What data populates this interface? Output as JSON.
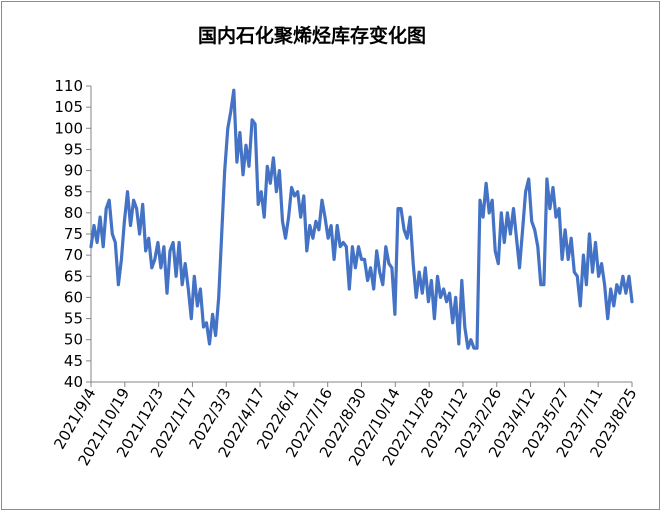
{
  "chart_data": {
    "type": "line",
    "title": "国内石化聚烯烃库存变化图",
    "xlabel": "",
    "ylabel": "",
    "ylim": [
      40,
      110
    ],
    "yticks": [
      40,
      45,
      50,
      55,
      60,
      65,
      70,
      75,
      80,
      85,
      90,
      95,
      100,
      105,
      110
    ],
    "xticks": [
      "2021/9/4",
      "2021/10/19",
      "2021/12/3",
      "2022/1/17",
      "2022/3/3",
      "2022/4/17",
      "2022/6/1",
      "2022/7/16",
      "2022/8/30",
      "2022/10/14",
      "2022/11/28",
      "2023/1/12",
      "2023/2/26",
      "2023/4/12",
      "2023/5/27",
      "2023/7/11",
      "2023/8/25"
    ],
    "grid": false,
    "legend": "none",
    "line_color": "#4472c4",
    "series": [
      {
        "values": [
          [
            0,
            72
          ],
          [
            1,
            77
          ],
          [
            2,
            73
          ],
          [
            3,
            79
          ],
          [
            4,
            72
          ],
          [
            5,
            81
          ],
          [
            6,
            83
          ],
          [
            7,
            75
          ],
          [
            8,
            73
          ],
          [
            9,
            63
          ],
          [
            10,
            69
          ],
          [
            11,
            78
          ],
          [
            12,
            85
          ],
          [
            13,
            77
          ],
          [
            14,
            83
          ],
          [
            15,
            81
          ],
          [
            16,
            75
          ],
          [
            17,
            82
          ],
          [
            18,
            71
          ],
          [
            19,
            74
          ],
          [
            20,
            67
          ],
          [
            21,
            69
          ],
          [
            22,
            73
          ],
          [
            23,
            67
          ],
          [
            24,
            72
          ],
          [
            25,
            61
          ],
          [
            26,
            71
          ],
          [
            27,
            73
          ],
          [
            28,
            65
          ],
          [
            29,
            73
          ],
          [
            30,
            63
          ],
          [
            31,
            68
          ],
          [
            32,
            62
          ],
          [
            33,
            55
          ],
          [
            34,
            65
          ],
          [
            35,
            58
          ],
          [
            36,
            62
          ],
          [
            37,
            53
          ],
          [
            38,
            54
          ],
          [
            39,
            49
          ],
          [
            40,
            56
          ],
          [
            41,
            51
          ],
          [
            42,
            60
          ],
          [
            43,
            75
          ],
          [
            44,
            90
          ],
          [
            45,
            100
          ],
          [
            46,
            104
          ],
          [
            47,
            109
          ],
          [
            48,
            92
          ],
          [
            49,
            99
          ],
          [
            50,
            89
          ],
          [
            51,
            96
          ],
          [
            52,
            91
          ],
          [
            53,
            102
          ],
          [
            54,
            101
          ],
          [
            55,
            82
          ],
          [
            56,
            85
          ],
          [
            57,
            79
          ],
          [
            58,
            91
          ],
          [
            59,
            87
          ],
          [
            60,
            93
          ],
          [
            61,
            85
          ],
          [
            62,
            90
          ],
          [
            63,
            78
          ],
          [
            64,
            74
          ],
          [
            65,
            79
          ],
          [
            66,
            86
          ],
          [
            67,
            84
          ],
          [
            68,
            85
          ],
          [
            69,
            79
          ],
          [
            70,
            84
          ],
          [
            71,
            71
          ],
          [
            72,
            77
          ],
          [
            73,
            74
          ],
          [
            74,
            78
          ],
          [
            75,
            76
          ],
          [
            76,
            83
          ],
          [
            77,
            79
          ],
          [
            78,
            74
          ],
          [
            79,
            77
          ],
          [
            80,
            69
          ],
          [
            81,
            77
          ],
          [
            82,
            72
          ],
          [
            83,
            73
          ],
          [
            84,
            72
          ],
          [
            85,
            62
          ],
          [
            86,
            72
          ],
          [
            87,
            67
          ],
          [
            88,
            72
          ],
          [
            89,
            69
          ],
          [
            90,
            69
          ],
          [
            91,
            64
          ],
          [
            92,
            67
          ],
          [
            93,
            62
          ],
          [
            94,
            71
          ],
          [
            95,
            66
          ],
          [
            96,
            63
          ],
          [
            97,
            72
          ],
          [
            98,
            68
          ],
          [
            99,
            67
          ],
          [
            100,
            56
          ],
          [
            101,
            81
          ],
          [
            102,
            81
          ],
          [
            103,
            76
          ],
          [
            104,
            74
          ],
          [
            105,
            79
          ],
          [
            106,
            68
          ],
          [
            107,
            60
          ],
          [
            108,
            66
          ],
          [
            109,
            61
          ],
          [
            110,
            67
          ],
          [
            111,
            59
          ],
          [
            112,
            64
          ],
          [
            113,
            55
          ],
          [
            114,
            65
          ],
          [
            115,
            60
          ],
          [
            116,
            62
          ],
          [
            117,
            59
          ],
          [
            118,
            61
          ],
          [
            119,
            54
          ],
          [
            120,
            60
          ],
          [
            121,
            49
          ],
          [
            122,
            64
          ],
          [
            123,
            53
          ],
          [
            124,
            48
          ],
          [
            125,
            50
          ],
          [
            126,
            48
          ],
          [
            127,
            48
          ],
          [
            128,
            83
          ],
          [
            129,
            79
          ],
          [
            130,
            87
          ],
          [
            131,
            80
          ],
          [
            132,
            83
          ],
          [
            133,
            71
          ],
          [
            134,
            68
          ],
          [
            135,
            80
          ],
          [
            136,
            73
          ],
          [
            137,
            80
          ],
          [
            138,
            75
          ],
          [
            139,
            81
          ],
          [
            140,
            74
          ],
          [
            141,
            67
          ],
          [
            142,
            76
          ],
          [
            143,
            85
          ],
          [
            144,
            88
          ],
          [
            145,
            78
          ],
          [
            146,
            76
          ],
          [
            147,
            72
          ],
          [
            148,
            63
          ],
          [
            149,
            63
          ],
          [
            150,
            88
          ],
          [
            151,
            81
          ],
          [
            152,
            86
          ],
          [
            153,
            79
          ],
          [
            154,
            81
          ],
          [
            155,
            69
          ],
          [
            156,
            76
          ],
          [
            157,
            69
          ],
          [
            158,
            74
          ],
          [
            159,
            66
          ],
          [
            160,
            65
          ],
          [
            161,
            58
          ],
          [
            162,
            70
          ],
          [
            163,
            63
          ],
          [
            164,
            75
          ],
          [
            165,
            66
          ],
          [
            166,
            73
          ],
          [
            167,
            65
          ],
          [
            168,
            68
          ],
          [
            169,
            63
          ],
          [
            170,
            55
          ],
          [
            171,
            62
          ],
          [
            172,
            58
          ],
          [
            173,
            63
          ],
          [
            174,
            61
          ],
          [
            175,
            65
          ],
          [
            176,
            61
          ],
          [
            177,
            65
          ],
          [
            178,
            59
          ]
        ]
      }
    ]
  }
}
